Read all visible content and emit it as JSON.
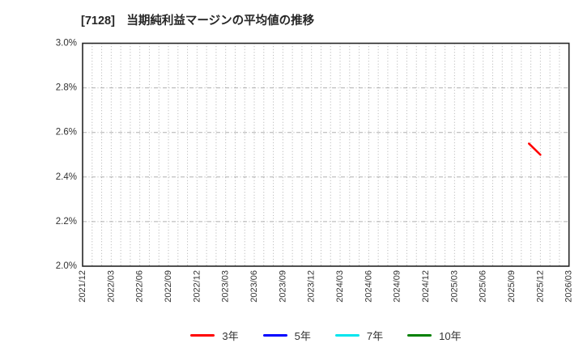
{
  "page": {
    "background": "#ffffff"
  },
  "chart_data": {
    "type": "line",
    "title": "[7128]　当期純利益マージンの平均値の推移",
    "x_axis": {
      "tick_labels": [
        "2021/12",
        "2022/03",
        "2022/06",
        "2022/09",
        "2022/12",
        "2023/03",
        "2023/06",
        "2023/09",
        "2023/12",
        "2024/03",
        "2024/06",
        "2024/09",
        "2024/12",
        "2025/03",
        "2025/06",
        "2025/09",
        "2025/12",
        "2026/03"
      ],
      "tick_month_indices": [
        0,
        3,
        6,
        9,
        12,
        15,
        18,
        21,
        24,
        27,
        30,
        33,
        36,
        39,
        42,
        45,
        48,
        51
      ],
      "months_total": 51,
      "minor_grid": "monthly"
    },
    "y_axis": {
      "min": 2.0,
      "max": 3.0,
      "tick_step": 0.2,
      "unit": "%",
      "ticks": [
        {
          "label": "3.0%",
          "value": 3.0
        },
        {
          "label": "2.8%",
          "value": 2.8
        },
        {
          "label": "2.6%",
          "value": 2.6
        },
        {
          "label": "2.4%",
          "value": 2.4
        },
        {
          "label": "2.2%",
          "value": 2.2
        },
        {
          "label": "2.0%",
          "value": 2.0
        }
      ]
    },
    "series": [
      {
        "name": "3年",
        "color": "#ff0000",
        "points": [
          {
            "x_label": "2025/11",
            "month_index": 46.8,
            "value": 2.55
          },
          {
            "x_label": "2025/12",
            "month_index": 48.0,
            "value": 2.5
          }
        ]
      },
      {
        "name": "5年",
        "color": "#0000ff",
        "points": []
      },
      {
        "name": "7年",
        "color": "#00e5ee",
        "points": []
      },
      {
        "name": "10年",
        "color": "#008000",
        "points": []
      }
    ],
    "grid": true,
    "legend_position": "bottom"
  },
  "colors": {
    "plot_border": "#262626",
    "grid": "#b0b0b0",
    "tick_text": "#333333",
    "title_text": "#262626"
  }
}
